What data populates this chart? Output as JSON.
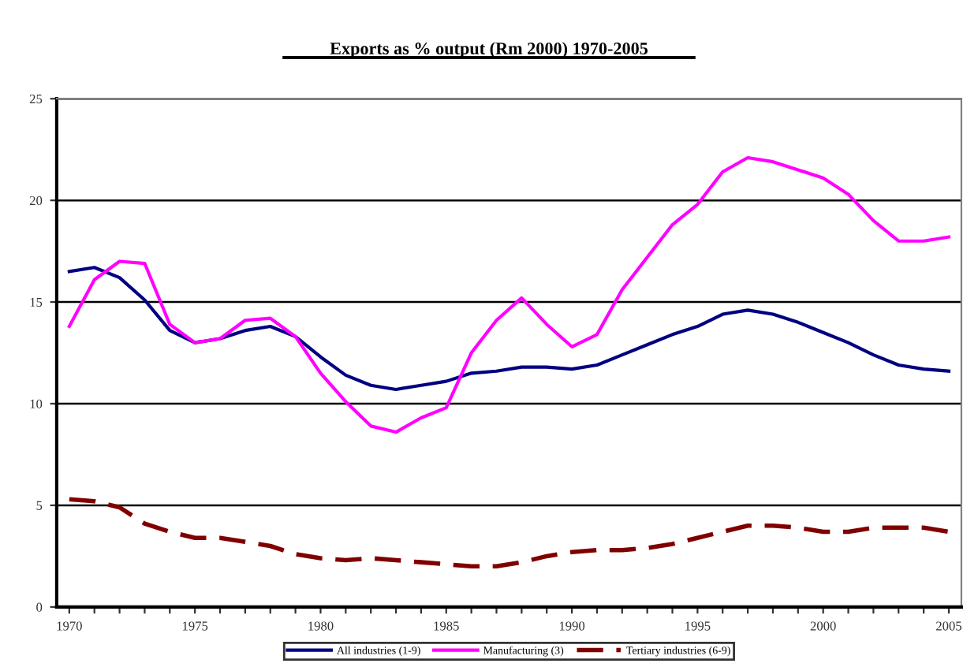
{
  "chart_data": {
    "type": "line",
    "title": "Exports as % output (Rm 2000) 1970-2005",
    "x": [
      1970,
      1971,
      1972,
      1973,
      1974,
      1975,
      1976,
      1977,
      1978,
      1979,
      1980,
      1981,
      1982,
      1983,
      1984,
      1985,
      1986,
      1987,
      1988,
      1989,
      1990,
      1991,
      1992,
      1993,
      1994,
      1995,
      1996,
      1997,
      1998,
      1999,
      2000,
      2001,
      2002,
      2003,
      2004,
      2005
    ],
    "series": [
      {
        "name": "All industries (1-9)",
        "color": "#000080",
        "line_style": "solid",
        "values": [
          16.5,
          16.7,
          16.2,
          15.1,
          13.6,
          13.0,
          13.2,
          13.6,
          13.8,
          13.3,
          12.3,
          11.4,
          10.9,
          10.7,
          10.9,
          11.1,
          11.5,
          11.6,
          11.8,
          11.8,
          11.7,
          11.9,
          12.4,
          12.9,
          13.4,
          13.8,
          14.4,
          14.6,
          14.4,
          14.0,
          13.5,
          13.0,
          12.4,
          11.9,
          11.7,
          11.6
        ]
      },
      {
        "name": "Manufacturing (3)",
        "color": "#ff00ff",
        "line_style": "solid",
        "values": [
          13.8,
          16.1,
          17.0,
          16.9,
          13.9,
          13.0,
          13.2,
          14.1,
          14.2,
          13.3,
          11.5,
          10.1,
          8.9,
          8.6,
          9.3,
          9.8,
          12.5,
          14.1,
          15.2,
          13.9,
          12.8,
          13.4,
          15.6,
          17.2,
          18.8,
          19.8,
          21.4,
          22.1,
          21.9,
          21.5,
          21.1,
          20.3,
          19.0,
          18.0,
          18.0,
          18.2
        ]
      },
      {
        "name": "Tertiary industries (6-9)",
        "color": "#800000",
        "line_style": "dashed",
        "values": [
          5.3,
          5.2,
          4.9,
          4.1,
          3.7,
          3.4,
          3.4,
          3.2,
          3.0,
          2.6,
          2.4,
          2.3,
          2.4,
          2.3,
          2.2,
          2.1,
          2.0,
          2.0,
          2.2,
          2.5,
          2.7,
          2.8,
          2.8,
          2.9,
          3.1,
          3.4,
          3.7,
          4.0,
          4.0,
          3.9,
          3.7,
          3.7,
          3.9,
          3.9,
          3.9,
          3.7
        ]
      }
    ],
    "xlim": [
      1969.5,
      2005.5
    ],
    "xticks": [
      1970,
      {
        "value": 1971,
        "label": null
      },
      {
        "value": 1972,
        "label": null
      },
      {
        "value": 1973,
        "label": null
      },
      {
        "value": 1974,
        "label": null
      },
      1975,
      {
        "value": 1976,
        "label": null
      },
      {
        "value": 1977,
        "label": null
      },
      {
        "value": 1978,
        "label": null
      },
      {
        "value": 1979,
        "label": null
      },
      1980,
      {
        "value": 1981,
        "label": null
      },
      {
        "value": 1982,
        "label": null
      },
      {
        "value": 1983,
        "label": null
      },
      {
        "value": 1984,
        "label": null
      },
      1985,
      {
        "value": 1986,
        "label": null
      },
      {
        "value": 1987,
        "label": null
      },
      {
        "value": 1988,
        "label": null
      },
      {
        "value": 1989,
        "label": null
      },
      1990,
      {
        "value": 1991,
        "label": null
      },
      {
        "value": 1992,
        "label": null
      },
      {
        "value": 1993,
        "label": null
      },
      {
        "value": 1994,
        "label": null
      },
      1995,
      {
        "value": 1996,
        "label": null
      },
      {
        "value": 1997,
        "label": null
      },
      {
        "value": 1998,
        "label": null
      },
      {
        "value": 1999,
        "label": null
      },
      2000,
      {
        "value": 2001,
        "label": null
      },
      {
        "value": 2002,
        "label": null
      },
      {
        "value": 2003,
        "label": null
      },
      {
        "value": 2004,
        "label": null
      },
      2005
    ],
    "ylim": [
      0,
      25
    ],
    "yticks": [
      0,
      5,
      10,
      15,
      20,
      25
    ],
    "grid": "y",
    "legend": "bottom",
    "marker": "none"
  }
}
